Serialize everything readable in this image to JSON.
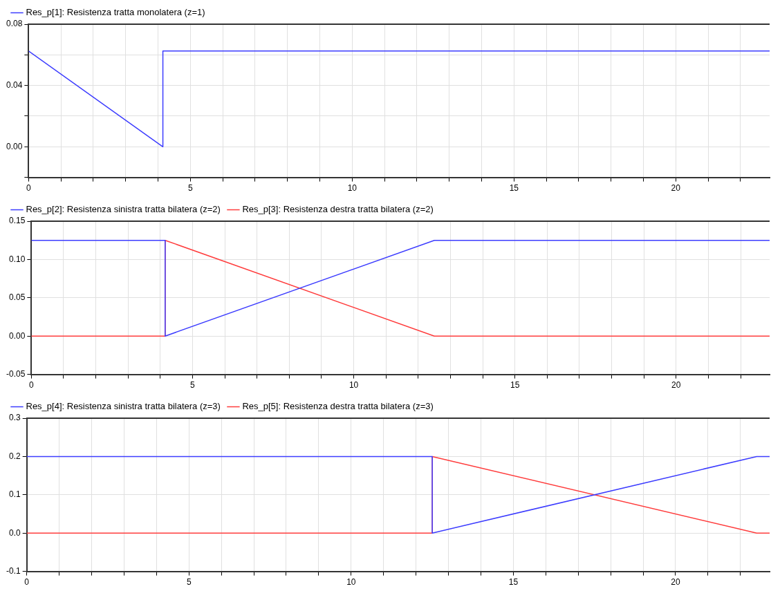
{
  "chart_data": [
    {
      "type": "line",
      "legend": "top left",
      "grid": true,
      "marker": "none",
      "line_style": "solid",
      "xlim": [
        0,
        22.9
      ],
      "ylim": [
        -0.02,
        0.08
      ],
      "xticks": [
        0,
        {
          "value": 1,
          "label": null
        },
        {
          "value": 2,
          "label": null
        },
        {
          "value": 3,
          "label": null
        },
        {
          "value": 4,
          "label": null
        },
        5,
        {
          "value": 6,
          "label": null
        },
        {
          "value": 7,
          "label": null
        },
        {
          "value": 8,
          "label": null
        },
        {
          "value": 9,
          "label": null
        },
        10,
        {
          "value": 11,
          "label": null
        },
        {
          "value": 12,
          "label": null
        },
        {
          "value": 13,
          "label": null
        },
        {
          "value": 14,
          "label": null
        },
        15,
        {
          "value": 16,
          "label": null
        },
        {
          "value": 17,
          "label": null
        },
        {
          "value": 18,
          "label": null
        },
        {
          "value": 19,
          "label": null
        },
        20,
        {
          "value": 21,
          "label": null
        },
        {
          "value": 22,
          "label": null
        }
      ],
      "yticks": [
        {
          "value": -0.02,
          "label": null
        },
        {
          "value": 0,
          "label": "0.00"
        },
        {
          "value": 0.02,
          "label": null
        },
        {
          "value": 0.04,
          "label": "0.04"
        },
        {
          "value": 0.06,
          "label": null
        },
        {
          "value": 0.08,
          "label": "0.08"
        }
      ],
      "series": [
        {
          "name": "Res_p[1]: Resistenza tratta monolatera (z=1)",
          "color": "#3c3cff",
          "x": [
            0,
            4.15,
            4.15,
            22.9
          ],
          "values": [
            0.0625,
            0,
            0.0625,
            0.0625
          ]
        }
      ]
    },
    {
      "type": "line",
      "legend": "top left",
      "grid": true,
      "marker": "none",
      "line_style": "solid",
      "xlim": [
        0,
        22.9
      ],
      "ylim": [
        -0.05,
        0.15
      ],
      "xticks": [
        0,
        {
          "value": 1,
          "label": null
        },
        {
          "value": 2,
          "label": null
        },
        {
          "value": 3,
          "label": null
        },
        {
          "value": 4,
          "label": null
        },
        5,
        {
          "value": 6,
          "label": null
        },
        {
          "value": 7,
          "label": null
        },
        {
          "value": 8,
          "label": null
        },
        {
          "value": 9,
          "label": null
        },
        10,
        {
          "value": 11,
          "label": null
        },
        {
          "value": 12,
          "label": null
        },
        {
          "value": 13,
          "label": null
        },
        {
          "value": 14,
          "label": null
        },
        15,
        {
          "value": 16,
          "label": null
        },
        {
          "value": 17,
          "label": null
        },
        {
          "value": 18,
          "label": null
        },
        {
          "value": 19,
          "label": null
        },
        20,
        {
          "value": 21,
          "label": null
        },
        {
          "value": 22,
          "label": null
        }
      ],
      "yticks": [
        {
          "value": -0.05,
          "label": "-0.05"
        },
        {
          "value": 0,
          "label": "0.00"
        },
        {
          "value": 0.05,
          "label": "0.05"
        },
        {
          "value": 0.1,
          "label": "0.10"
        },
        {
          "value": 0.15,
          "label": "0.15"
        }
      ],
      "series": [
        {
          "name": "Res_p[2]: Resistenza sinistra tratta bilatera (z=2)",
          "color": "#3c3cff",
          "x": [
            0,
            4.15,
            4.15,
            12.5,
            22.9
          ],
          "values": [
            0.125,
            0.125,
            0,
            0.125,
            0.125
          ]
        },
        {
          "name": "Res_p[3]: Resistenza destra tratta bilatera (z=2)",
          "color": "#ff3c3c",
          "x": [
            0,
            4.15,
            4.15,
            12.5,
            22.9
          ],
          "values": [
            0,
            0,
            0.125,
            0,
            0
          ]
        }
      ]
    },
    {
      "type": "line",
      "legend": "top left",
      "grid": true,
      "marker": "none",
      "line_style": "solid",
      "xlim": [
        0,
        22.9
      ],
      "ylim": [
        -0.1,
        0.3
      ],
      "xticks": [
        0,
        {
          "value": 1,
          "label": null
        },
        {
          "value": 2,
          "label": null
        },
        {
          "value": 3,
          "label": null
        },
        {
          "value": 4,
          "label": null
        },
        5,
        {
          "value": 6,
          "label": null
        },
        {
          "value": 7,
          "label": null
        },
        {
          "value": 8,
          "label": null
        },
        {
          "value": 9,
          "label": null
        },
        10,
        {
          "value": 11,
          "label": null
        },
        {
          "value": 12,
          "label": null
        },
        {
          "value": 13,
          "label": null
        },
        {
          "value": 14,
          "label": null
        },
        15,
        {
          "value": 16,
          "label": null
        },
        {
          "value": 17,
          "label": null
        },
        {
          "value": 18,
          "label": null
        },
        {
          "value": 19,
          "label": null
        },
        20,
        {
          "value": 21,
          "label": null
        },
        {
          "value": 22,
          "label": null
        }
      ],
      "yticks": [
        {
          "value": -0.1,
          "label": "-0.1"
        },
        {
          "value": 0,
          "label": "0.0"
        },
        {
          "value": 0.1,
          "label": "0.1"
        },
        {
          "value": 0.2,
          "label": "0.2"
        },
        {
          "value": 0.3,
          "label": "0.3"
        }
      ],
      "series": [
        {
          "name": "Res_p[4]: Resistenza sinistra tratta bilatera (z=3)",
          "color": "#3c3cff",
          "x": [
            0,
            12.5,
            12.5,
            22.5,
            22.9
          ],
          "values": [
            0.2,
            0.2,
            0,
            0.2,
            0.2
          ]
        },
        {
          "name": "Res_p[5]: Resistenza destra tratta bilatera (z=3)",
          "color": "#ff3c3c",
          "x": [
            0,
            12.5,
            12.5,
            22.5,
            22.9
          ],
          "values": [
            0,
            0,
            0.2,
            0,
            0
          ]
        }
      ]
    }
  ]
}
